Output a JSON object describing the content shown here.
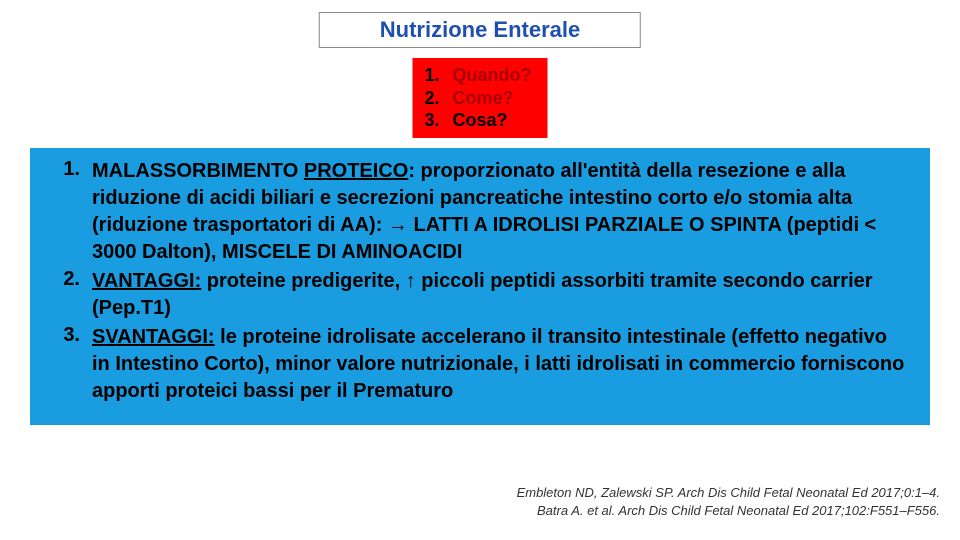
{
  "title": "Nutrizione Enterale",
  "questions": {
    "items": [
      {
        "num": "1.",
        "label": "Quando?",
        "active": false
      },
      {
        "num": "2.",
        "label": "Come?",
        "active": false
      },
      {
        "num": "3.",
        "label": "Cosa?",
        "active": true
      }
    ]
  },
  "main": {
    "items": [
      {
        "num": "1.",
        "lead": "MALASSORBIMENTO ",
        "lead_under": "PROTEICO",
        "after": ": proporzionato all'entità della resezione e alla riduzione di acidi biliari e secrezioni pancreatiche intestino corto e/o stomia alta (riduzione trasportatori di AA): → LATTI A IDROLISI PARZIALE O SPINTA (peptidi < 3000 Dalton), MISCELE DI AMINOACIDI"
      },
      {
        "num": "2.",
        "lead": "",
        "lead_under": "VANTAGGI:",
        "after": " proteine predigerite, ↑ piccoli peptidi assorbiti tramite secondo carrier (Pep.T1)"
      },
      {
        "num": "3.",
        "lead": "",
        "lead_under": "SVANTAGGI:",
        "after": " le proteine idrolisate accelerano il transito intestinale (effetto negativo in Intestino Corto), minor valore nutrizionale, i latti idrolisati in commercio forniscono apporti proteici bassi per il Prematuro"
      }
    ]
  },
  "citations": {
    "line1": "Embleton ND, Zalewski SP. Arch Dis Child Fetal Neonatal Ed 2017;0:1–4.",
    "line2": "Batra A. et al. Arch Dis Child Fetal Neonatal Ed 2017;102:F551–F556."
  },
  "colors": {
    "title_text": "#1f4fb0",
    "questions_bg": "#ff0000",
    "question_inactive": "#a80000",
    "question_active": "#000000",
    "main_bg": "#199de0"
  }
}
